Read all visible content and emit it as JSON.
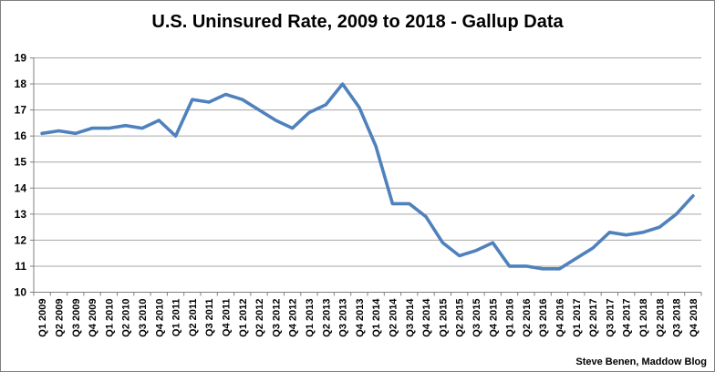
{
  "chart_data": {
    "type": "line",
    "title": "U.S. Uninsured Rate, 2009 to 2018 - Gallup Data",
    "attribution": "Steve Benen, Maddow Blog",
    "categories": [
      "Q1 2009",
      "Q2 2009",
      "Q3 2009",
      "Q4 2009",
      "Q1 2010",
      "Q2 2010",
      "Q3 2010",
      "Q4 2010",
      "Q1 2011",
      "Q2 2011",
      "Q3 2011",
      "Q4 2011",
      "Q1 2012",
      "Q2 2012",
      "Q3 2012",
      "Q4 2012",
      "Q1 2013",
      "Q2 2013",
      "Q3 2013",
      "Q4 2013",
      "Q1 2014",
      "Q2 2014",
      "Q3 2014",
      "Q4 2014",
      "Q1 2015",
      "Q2 2015",
      "Q3 2015",
      "Q4 2015",
      "Q1 2016",
      "Q2 2016",
      "Q3 2016",
      "Q4 2016",
      "Q1 2017",
      "Q2 2017",
      "Q3 2017",
      "Q4 2017",
      "Q1 2018",
      "Q2 2018",
      "Q3 2018",
      "Q4 2018"
    ],
    "values": [
      16.1,
      16.2,
      16.1,
      16.3,
      16.3,
      16.4,
      16.3,
      16.6,
      16.0,
      17.4,
      17.3,
      17.6,
      17.4,
      17.0,
      16.6,
      16.3,
      16.9,
      17.2,
      18.0,
      17.1,
      15.6,
      13.4,
      13.4,
      12.9,
      11.9,
      11.4,
      11.6,
      11.9,
      11.0,
      11.0,
      10.9,
      10.9,
      11.3,
      11.7,
      12.3,
      12.2,
      12.3,
      12.5,
      13.0,
      13.7
    ],
    "xlabel": "",
    "ylabel": "",
    "ylim": [
      10,
      19
    ],
    "ytick_step": 1,
    "grid": true,
    "legend": "none",
    "line_color": "#4F81BD",
    "gridline_color": "#A6A6A6",
    "axis_color": "#808080",
    "label_color": "#000000"
  }
}
